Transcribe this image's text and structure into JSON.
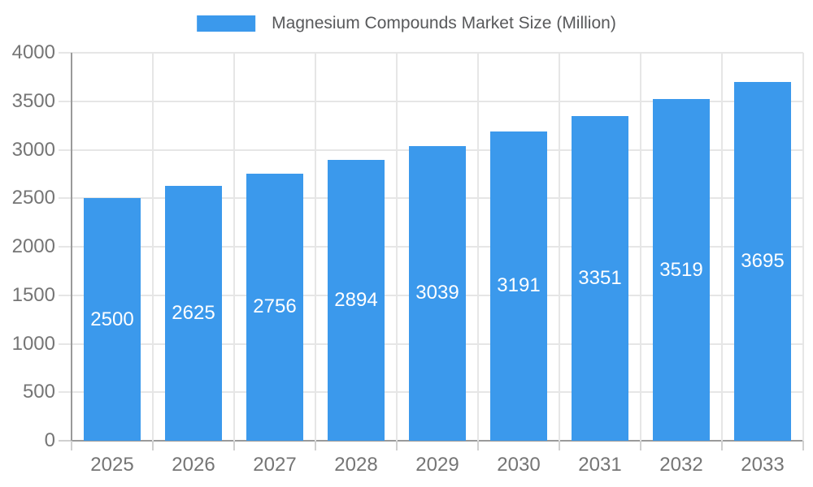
{
  "chart_data": {
    "type": "bar",
    "title": "Magnesium Compounds Market Size (Million)",
    "categories": [
      "2025",
      "2026",
      "2027",
      "2028",
      "2029",
      "2030",
      "2031",
      "2032",
      "2033"
    ],
    "series": [
      {
        "name": "Magnesium Compounds Market Size (Million)",
        "values": [
          2500,
          2625,
          2756,
          2894,
          3039,
          3191,
          3351,
          3519,
          3695
        ]
      }
    ],
    "bar_value_labels": [
      "2500",
      "2625",
      "2756",
      "2894",
      "3039",
      "3191",
      "3351",
      "3519",
      "3695"
    ],
    "xlabel": "",
    "ylabel": "",
    "ylim": [
      0,
      4000
    ],
    "ytick_interval": 500,
    "ytick_labels": [
      "0",
      "500",
      "1000",
      "1500",
      "2000",
      "2500",
      "3000",
      "3500",
      "4000"
    ],
    "grid": true,
    "legend_position": "top-center",
    "colors": {
      "bar": "#3b99ec",
      "bar_value_text": "#ffffff",
      "gridline": "#e6e6e6",
      "tick_line": "#d0d0d0",
      "axis_line": "#9a9a9a",
      "axis_label_text": "#757575",
      "legend_text": "#58595b",
      "background": "#ffffff"
    }
  }
}
